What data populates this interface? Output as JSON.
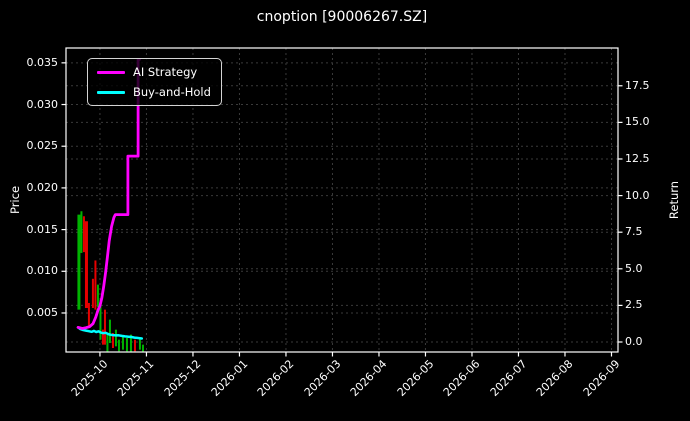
{
  "title": "cnoption [90006267.SZ]",
  "legend": {
    "items": [
      {
        "label": "AI Strategy",
        "color": "#ff00ff"
      },
      {
        "label": "Buy-and-Hold",
        "color": "#00ffff"
      }
    ]
  },
  "chart_data": {
    "type": "line",
    "title": "cnoption [90006267.SZ]",
    "xlabel": "",
    "left_axis": {
      "label": "Price",
      "tick_labels": [
        "0.005",
        "0.010",
        "0.015",
        "0.020",
        "0.025",
        "0.030",
        "0.035"
      ],
      "tick_values": [
        0.005,
        0.01,
        0.015,
        0.02,
        0.025,
        0.03,
        0.035
      ],
      "range": [
        0.00032,
        0.03678
      ]
    },
    "right_axis": {
      "label": "Return",
      "tick_labels": [
        "0.0",
        "2.5",
        "5.0",
        "7.5",
        "10.0",
        "12.5",
        "15.0",
        "17.5"
      ],
      "tick_values": [
        0.0,
        2.5,
        5.0,
        7.5,
        10.0,
        12.5,
        15.0,
        17.5
      ],
      "range": [
        -0.683,
        20.08
      ]
    },
    "x_axis": {
      "tick_labels": [
        "2025-10",
        "2025-11",
        "2025-12",
        "2026-01",
        "2026-02",
        "2026-03",
        "2026-04",
        "2026-05",
        "2026-06",
        "2026-07",
        "2026-08",
        "2026-09"
      ],
      "tick_values": [
        0,
        1,
        2,
        3,
        4,
        5,
        6,
        7,
        8,
        9,
        10,
        11
      ],
      "range": [
        -0.73,
        11.14
      ],
      "label_rotation": 45
    },
    "grid": {
      "on": true,
      "color": "#3a3a3a",
      "style": "dashed"
    },
    "legend_position": "upper-left",
    "series": [
      {
        "name": "AI Strategy",
        "axis": "return",
        "color": "#ff00ff",
        "width": 2.8,
        "points": [
          [
            -0.47,
            1.0
          ],
          [
            -0.38,
            0.92
          ],
          [
            -0.3,
            0.98
          ],
          [
            -0.22,
            1.05
          ],
          [
            -0.15,
            1.25
          ],
          [
            -0.09,
            1.7
          ],
          [
            -0.04,
            2.2
          ],
          [
            0.0,
            2.45
          ],
          [
            0.04,
            3.0
          ],
          [
            0.08,
            3.8
          ],
          [
            0.12,
            4.7
          ],
          [
            0.16,
            5.8
          ],
          [
            0.2,
            6.9
          ],
          [
            0.25,
            7.9
          ],
          [
            0.3,
            8.5
          ],
          [
            0.33,
            8.7
          ],
          [
            0.6,
            8.7
          ],
          [
            0.6,
            12.7
          ],
          [
            0.82,
            12.7
          ],
          [
            0.82,
            19.3
          ],
          [
            0.85,
            19.3
          ]
        ]
      },
      {
        "name": "Buy-and-Hold",
        "axis": "return",
        "color": "#00ffff",
        "width": 2.5,
        "points": [
          [
            -0.47,
            1.0
          ],
          [
            -0.42,
            0.88
          ],
          [
            -0.36,
            0.82
          ],
          [
            -0.3,
            0.78
          ],
          [
            -0.24,
            0.74
          ],
          [
            -0.18,
            0.7
          ],
          [
            -0.13,
            0.76
          ],
          [
            -0.08,
            0.68
          ],
          [
            -0.03,
            0.73
          ],
          [
            0.02,
            0.64
          ],
          [
            0.07,
            0.6
          ],
          [
            0.12,
            0.63
          ],
          [
            0.17,
            0.55
          ],
          [
            0.22,
            0.5
          ],
          [
            0.28,
            0.47
          ],
          [
            0.34,
            0.45
          ],
          [
            0.4,
            0.46
          ],
          [
            0.47,
            0.42
          ],
          [
            0.54,
            0.38
          ],
          [
            0.61,
            0.36
          ],
          [
            0.68,
            0.34
          ],
          [
            0.74,
            0.3
          ],
          [
            0.8,
            0.28
          ],
          [
            0.86,
            0.26
          ],
          [
            0.9,
            0.24
          ]
        ]
      }
    ],
    "candles": {
      "axis": "price",
      "up_color": "#00b300",
      "down_color": "#e60000",
      "bars": [
        [
          -0.452,
          0.0054,
          0.0168,
          "g"
        ],
        [
          -0.398,
          0.0122,
          0.0172,
          "g"
        ],
        [
          -0.344,
          0.0123,
          0.0166,
          "r"
        ],
        [
          -0.29,
          0.0056,
          0.016,
          "r"
        ],
        [
          -0.237,
          0.0035,
          0.0062,
          "r"
        ],
        [
          -0.151,
          0.0056,
          0.0091,
          "r"
        ],
        [
          -0.097,
          0.0054,
          0.0113,
          "r"
        ],
        [
          -0.043,
          0.0057,
          0.0084,
          "g"
        ],
        [
          0.011,
          0.0018,
          0.0066,
          "g"
        ],
        [
          0.065,
          0.0012,
          0.003,
          "r"
        ],
        [
          0.108,
          0.0012,
          0.0054,
          "r"
        ],
        [
          0.161,
          0.0003,
          0.0026,
          "g"
        ],
        [
          0.215,
          0.0014,
          0.0042,
          "g"
        ],
        [
          0.28,
          0.0008,
          0.0026,
          "r"
        ],
        [
          0.344,
          0.001,
          0.003,
          "g"
        ],
        [
          0.409,
          0.0004,
          0.0018,
          "g"
        ],
        [
          0.495,
          0.0006,
          0.0022,
          "g"
        ],
        [
          0.581,
          0.0004,
          0.002,
          "g"
        ],
        [
          0.667,
          0.0003,
          0.0024,
          "g"
        ],
        [
          0.753,
          0.0004,
          0.0018,
          "r"
        ],
        [
          0.86,
          0.0006,
          0.002,
          "g"
        ],
        [
          0.925,
          0.0003,
          0.0012,
          "g"
        ]
      ]
    }
  }
}
